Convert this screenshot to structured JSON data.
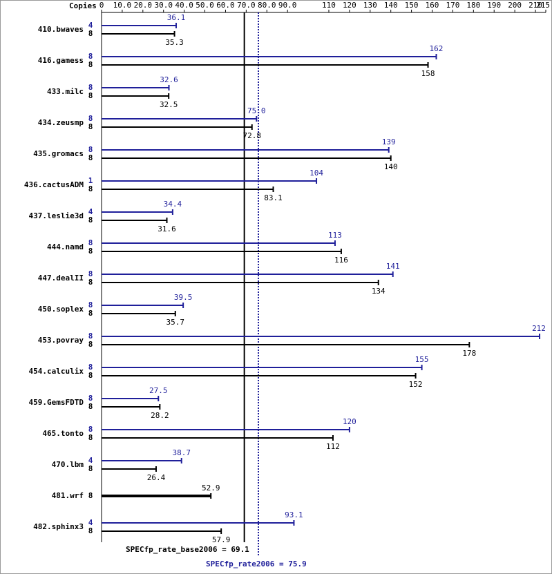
{
  "chart_data": {
    "type": "spec-bar",
    "copies_header": "Copies",
    "categories": [
      "410.bwaves",
      "416.gamess",
      "433.milc",
      "434.zeusmp",
      "435.gromacs",
      "436.cactusADM",
      "437.leslie3d",
      "444.namd",
      "447.dealII",
      "450.soplex",
      "453.povray",
      "454.calculix",
      "459.GemsFDTD",
      "465.tonto",
      "470.lbm",
      "481.wrf",
      "482.sphinx3"
    ],
    "series": [
      {
        "color": "#1f1f9a",
        "copies": [
          4,
          8,
          8,
          8,
          8,
          1,
          4,
          8,
          8,
          8,
          8,
          8,
          8,
          8,
          4,
          null,
          4
        ],
        "values": [
          36.1,
          162,
          32.6,
          75.0,
          139,
          104,
          34.4,
          113,
          141,
          39.5,
          212,
          155,
          27.5,
          120,
          38.7,
          null,
          93.1
        ],
        "value_labels": [
          "36.1",
          "162",
          "32.6",
          "75.0",
          "139",
          "104",
          "34.4",
          "113",
          "141",
          "39.5",
          "212",
          "155",
          "27.5",
          "120",
          "38.7",
          null,
          "93.1"
        ]
      },
      {
        "color": "#000000",
        "copies": [
          8,
          8,
          8,
          8,
          8,
          8,
          8,
          8,
          8,
          8,
          8,
          8,
          8,
          8,
          8,
          8,
          8
        ],
        "values": [
          35.3,
          158,
          32.5,
          72.8,
          140,
          83.1,
          31.6,
          116,
          134,
          35.7,
          178,
          152,
          28.2,
          112,
          26.4,
          52.9,
          57.9
        ],
        "value_labels": [
          "35.3",
          "158",
          "32.5",
          "72.8",
          "140",
          "83.1",
          "31.6",
          "116",
          "134",
          "35.7",
          "178",
          "152",
          "28.2",
          "112",
          "26.4",
          "52.9",
          "57.9"
        ]
      }
    ],
    "xlim": [
      0,
      215
    ],
    "xticks": [
      0,
      {
        "value": 10,
        "label": "10.0"
      },
      {
        "value": 20,
        "label": "20.0"
      },
      {
        "value": 30,
        "label": "30.0"
      },
      {
        "value": 40,
        "label": "40.0"
      },
      {
        "value": 50,
        "label": "50.0"
      },
      {
        "value": 60,
        "label": "60.0"
      },
      {
        "value": 70,
        "label": "70.0"
      },
      {
        "value": 80,
        "label": "80.0"
      },
      {
        "value": 90,
        "label": "90.0"
      },
      110,
      120,
      130,
      140,
      150,
      160,
      170,
      180,
      190,
      200,
      210,
      215
    ],
    "base_summary": {
      "label": "SPECfp_rate_base2006 = 69.1",
      "value": 69.1,
      "color": "#000000"
    },
    "peak_summary": {
      "label": "SPECfp_rate2006 = 75.9",
      "value": 75.9,
      "color": "#1f1f9a"
    }
  }
}
